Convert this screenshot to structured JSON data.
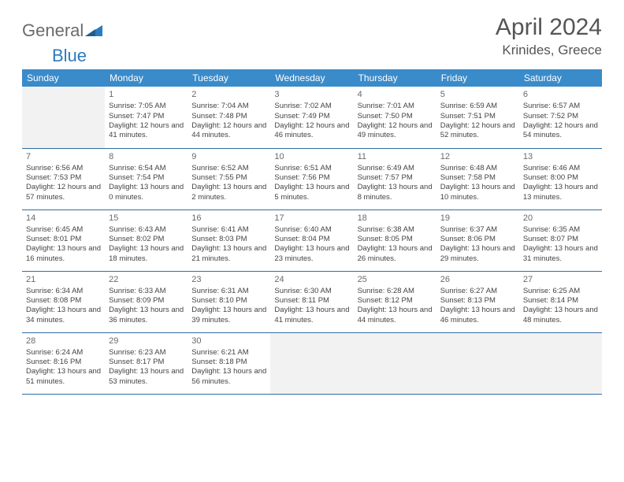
{
  "brand": {
    "text1": "General",
    "text2": "Blue",
    "accent": "#2b7bbf",
    "gray": "#6b6b6b"
  },
  "title": "April 2024",
  "location": "Krinides, Greece",
  "colors": {
    "header_bg": "#3a8bc9",
    "header_text": "#ffffff",
    "row_border": "#2f6ea3",
    "empty_bg": "#f2f2f2",
    "page_bg": "#ffffff",
    "body_text": "#444444",
    "daynum_text": "#6a6a6a"
  },
  "weekdays": [
    "Sunday",
    "Monday",
    "Tuesday",
    "Wednesday",
    "Thursday",
    "Friday",
    "Saturday"
  ],
  "grid": [
    [
      null,
      {
        "n": "1",
        "sr": "7:05 AM",
        "ss": "7:47 PM",
        "dl": "12 hours and 41 minutes."
      },
      {
        "n": "2",
        "sr": "7:04 AM",
        "ss": "7:48 PM",
        "dl": "12 hours and 44 minutes."
      },
      {
        "n": "3",
        "sr": "7:02 AM",
        "ss": "7:49 PM",
        "dl": "12 hours and 46 minutes."
      },
      {
        "n": "4",
        "sr": "7:01 AM",
        "ss": "7:50 PM",
        "dl": "12 hours and 49 minutes."
      },
      {
        "n": "5",
        "sr": "6:59 AM",
        "ss": "7:51 PM",
        "dl": "12 hours and 52 minutes."
      },
      {
        "n": "6",
        "sr": "6:57 AM",
        "ss": "7:52 PM",
        "dl": "12 hours and 54 minutes."
      }
    ],
    [
      {
        "n": "7",
        "sr": "6:56 AM",
        "ss": "7:53 PM",
        "dl": "12 hours and 57 minutes."
      },
      {
        "n": "8",
        "sr": "6:54 AM",
        "ss": "7:54 PM",
        "dl": "13 hours and 0 minutes."
      },
      {
        "n": "9",
        "sr": "6:52 AM",
        "ss": "7:55 PM",
        "dl": "13 hours and 2 minutes."
      },
      {
        "n": "10",
        "sr": "6:51 AM",
        "ss": "7:56 PM",
        "dl": "13 hours and 5 minutes."
      },
      {
        "n": "11",
        "sr": "6:49 AM",
        "ss": "7:57 PM",
        "dl": "13 hours and 8 minutes."
      },
      {
        "n": "12",
        "sr": "6:48 AM",
        "ss": "7:58 PM",
        "dl": "13 hours and 10 minutes."
      },
      {
        "n": "13",
        "sr": "6:46 AM",
        "ss": "8:00 PM",
        "dl": "13 hours and 13 minutes."
      }
    ],
    [
      {
        "n": "14",
        "sr": "6:45 AM",
        "ss": "8:01 PM",
        "dl": "13 hours and 16 minutes."
      },
      {
        "n": "15",
        "sr": "6:43 AM",
        "ss": "8:02 PM",
        "dl": "13 hours and 18 minutes."
      },
      {
        "n": "16",
        "sr": "6:41 AM",
        "ss": "8:03 PM",
        "dl": "13 hours and 21 minutes."
      },
      {
        "n": "17",
        "sr": "6:40 AM",
        "ss": "8:04 PM",
        "dl": "13 hours and 23 minutes."
      },
      {
        "n": "18",
        "sr": "6:38 AM",
        "ss": "8:05 PM",
        "dl": "13 hours and 26 minutes."
      },
      {
        "n": "19",
        "sr": "6:37 AM",
        "ss": "8:06 PM",
        "dl": "13 hours and 29 minutes."
      },
      {
        "n": "20",
        "sr": "6:35 AM",
        "ss": "8:07 PM",
        "dl": "13 hours and 31 minutes."
      }
    ],
    [
      {
        "n": "21",
        "sr": "6:34 AM",
        "ss": "8:08 PM",
        "dl": "13 hours and 34 minutes."
      },
      {
        "n": "22",
        "sr": "6:33 AM",
        "ss": "8:09 PM",
        "dl": "13 hours and 36 minutes."
      },
      {
        "n": "23",
        "sr": "6:31 AM",
        "ss": "8:10 PM",
        "dl": "13 hours and 39 minutes."
      },
      {
        "n": "24",
        "sr": "6:30 AM",
        "ss": "8:11 PM",
        "dl": "13 hours and 41 minutes."
      },
      {
        "n": "25",
        "sr": "6:28 AM",
        "ss": "8:12 PM",
        "dl": "13 hours and 44 minutes."
      },
      {
        "n": "26",
        "sr": "6:27 AM",
        "ss": "8:13 PM",
        "dl": "13 hours and 46 minutes."
      },
      {
        "n": "27",
        "sr": "6:25 AM",
        "ss": "8:14 PM",
        "dl": "13 hours and 48 minutes."
      }
    ],
    [
      {
        "n": "28",
        "sr": "6:24 AM",
        "ss": "8:16 PM",
        "dl": "13 hours and 51 minutes."
      },
      {
        "n": "29",
        "sr": "6:23 AM",
        "ss": "8:17 PM",
        "dl": "13 hours and 53 minutes."
      },
      {
        "n": "30",
        "sr": "6:21 AM",
        "ss": "8:18 PM",
        "dl": "13 hours and 56 minutes."
      },
      null,
      null,
      null,
      null
    ]
  ],
  "labels": {
    "sunrise": "Sunrise:",
    "sunset": "Sunset:",
    "daylight": "Daylight:"
  }
}
